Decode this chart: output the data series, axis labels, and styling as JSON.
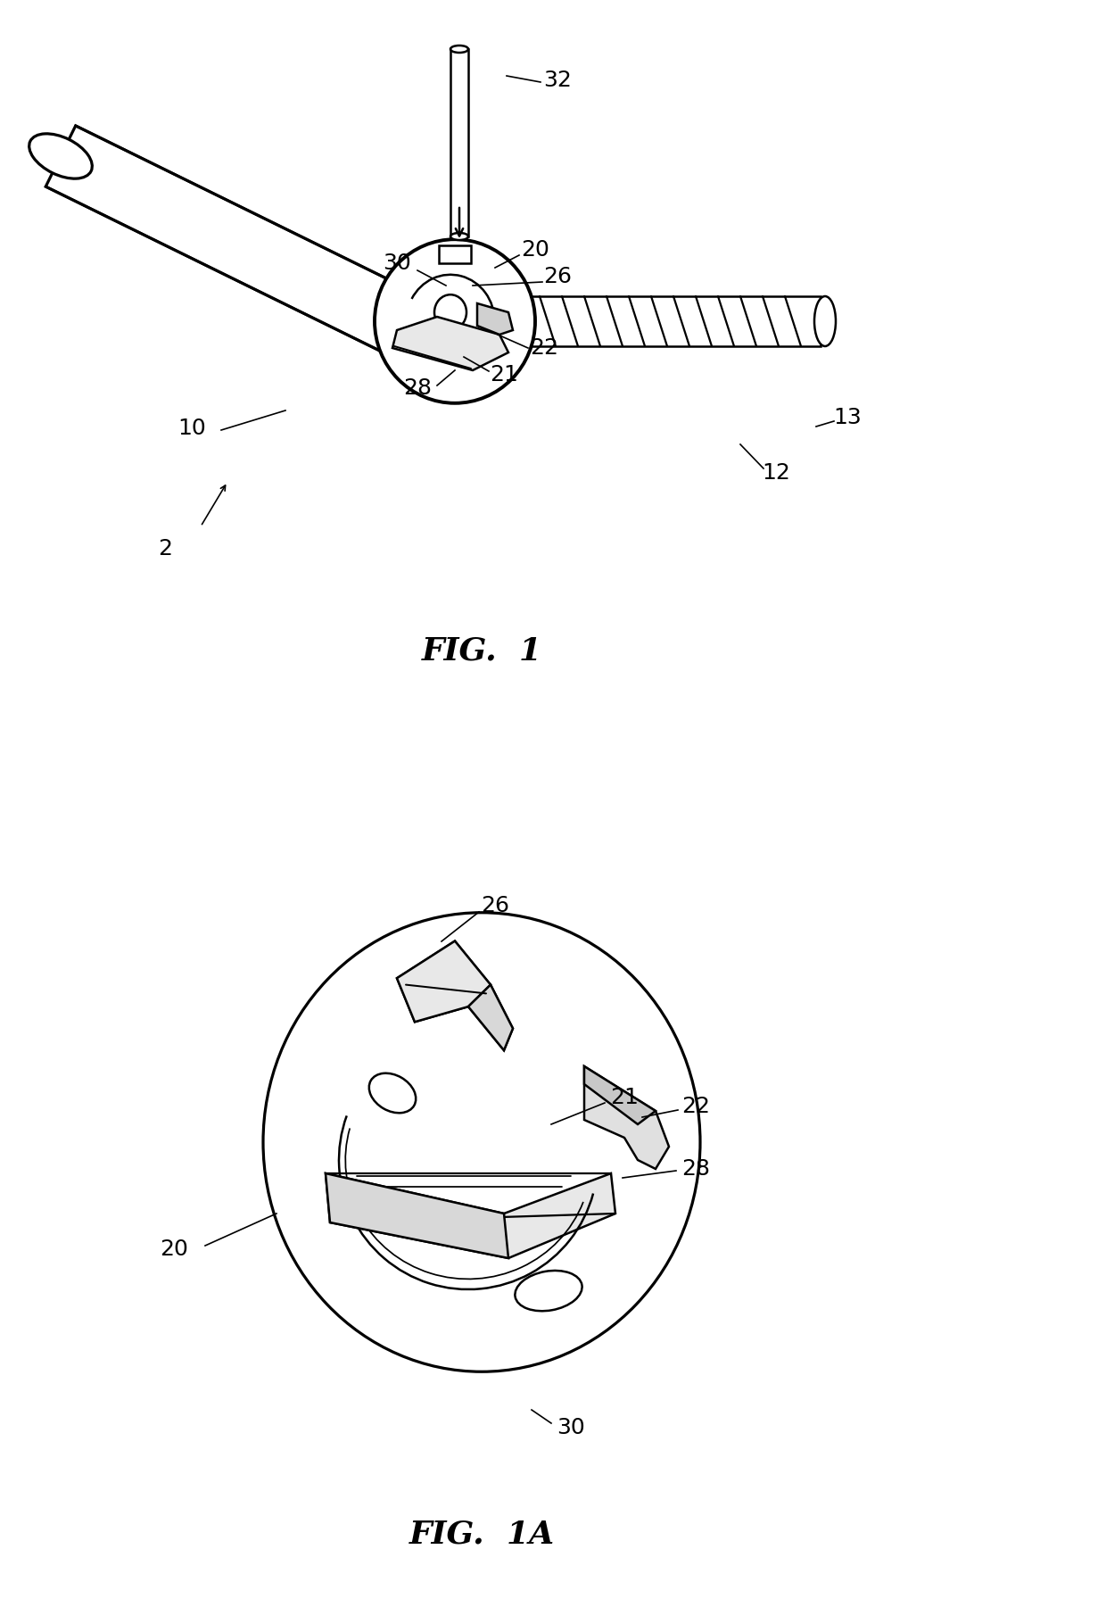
{
  "background_color": "#ffffff",
  "line_color": "#000000",
  "line_width": 1.8,
  "fig_width": 12.4,
  "fig_height": 17.92,
  "dpi": 100,
  "fig1_label": "FIG.  1",
  "fig1a_label": "FIG.  1A",
  "fig1_label_fontsize": 26,
  "fig1a_label_fontsize": 26,
  "label_fontsize": 18
}
